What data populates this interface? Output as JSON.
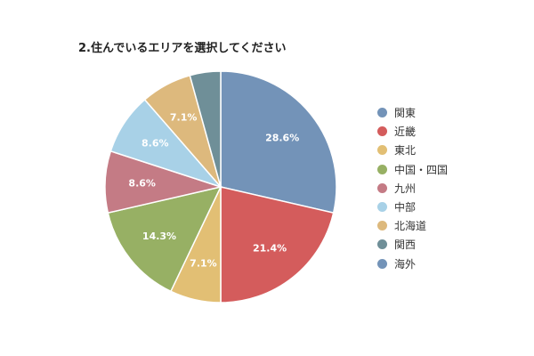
{
  "chart_data": {
    "type": "pie",
    "title": "2.住んでいるエリアを選択してください",
    "legend_position": "right",
    "slices": [
      {
        "label": "関東",
        "value": 28.6,
        "data_label": "28.6%",
        "color": "#7393b8"
      },
      {
        "label": "近畿",
        "value": 21.4,
        "data_label": "21.4%",
        "color": "#d45c5c"
      },
      {
        "label": "東北",
        "value": 7.1,
        "data_label": "7.1%",
        "color": "#e2bf74"
      },
      {
        "label": "中国・四国",
        "value": 14.3,
        "data_label": "14.3%",
        "color": "#97b064"
      },
      {
        "label": "九州",
        "value": 8.6,
        "data_label": "8.6%",
        "color": "#c47b85"
      },
      {
        "label": "中部",
        "value": 8.6,
        "data_label": "8.6%",
        "color": "#a8d1e7"
      },
      {
        "label": "北海道",
        "value": 7.1,
        "data_label": "7.1%",
        "color": "#ddb97d"
      },
      {
        "label": "関西",
        "value": 4.3,
        "data_label": "",
        "color": "#6f8f98"
      },
      {
        "label": "海外",
        "value": 0,
        "data_label": "",
        "color": "#7393b8"
      }
    ]
  }
}
